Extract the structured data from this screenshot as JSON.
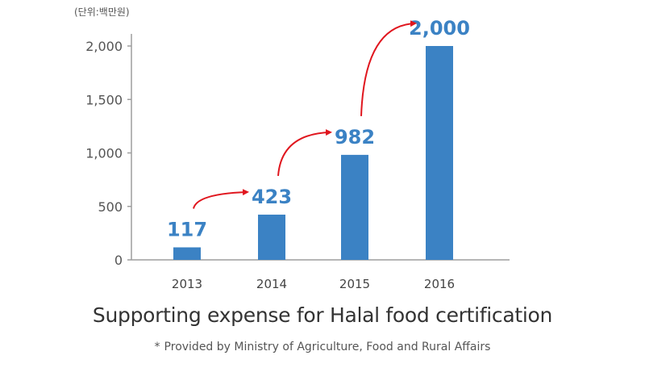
{
  "chart_data": {
    "type": "bar",
    "unit_note": "(단위:백만원)",
    "title": "Supporting expense for Halal food certification",
    "source_mark": "*",
    "source_note": "Provided by Ministry of Agriculture, Food and Rural Affairs",
    "categories": [
      "2013",
      "2014",
      "2015",
      "2016"
    ],
    "values": [
      117,
      423,
      982,
      2000
    ],
    "data_labels": [
      "117",
      "423",
      "982",
      "2,000"
    ],
    "y_ticks": [
      0,
      500,
      1000,
      1500,
      2000
    ],
    "y_tick_labels": [
      "0",
      "500",
      "1,000",
      "1,500",
      "2,000"
    ],
    "ylim": [
      0,
      2000
    ],
    "grid": false,
    "colors": {
      "bar": "#3b82c4",
      "data_label": "#3b82c4",
      "arrow": "#e0161e",
      "axis": "#9e9e9e"
    }
  }
}
